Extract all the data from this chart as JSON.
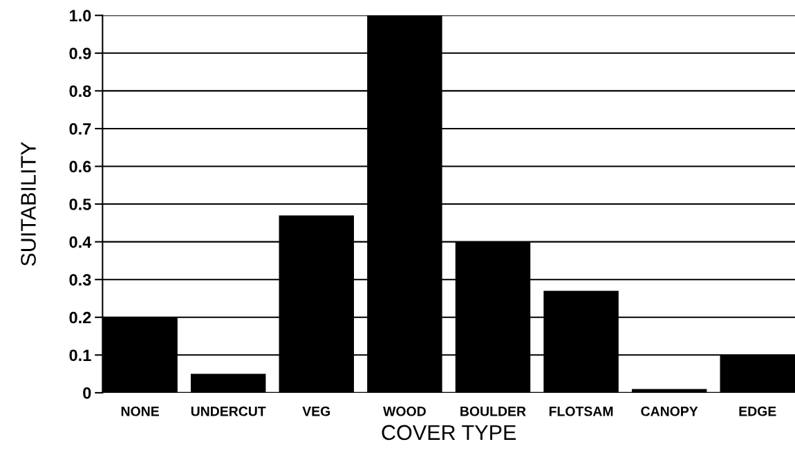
{
  "chart_data": {
    "type": "bar",
    "xlabel": "COVER TYPE",
    "ylabel": "SUITABILITY",
    "categories": [
      "NONE",
      "UNDERCUT",
      "VEG",
      "WOOD",
      "BOULDER",
      "FLOTSAM",
      "CANOPY",
      "EDGE"
    ],
    "values": [
      0.2,
      0.05,
      0.47,
      1.0,
      0.4,
      0.27,
      0.01,
      0.1
    ],
    "color": "#000000",
    "ylim": [
      0,
      1
    ],
    "yticks": [
      0,
      0.1,
      0.2,
      0.3,
      0.4,
      0.5,
      0.6,
      0.7,
      0.8,
      0.9,
      {
        "value": 1,
        "label": "1.0"
      }
    ],
    "grid": "y",
    "legend": false
  }
}
